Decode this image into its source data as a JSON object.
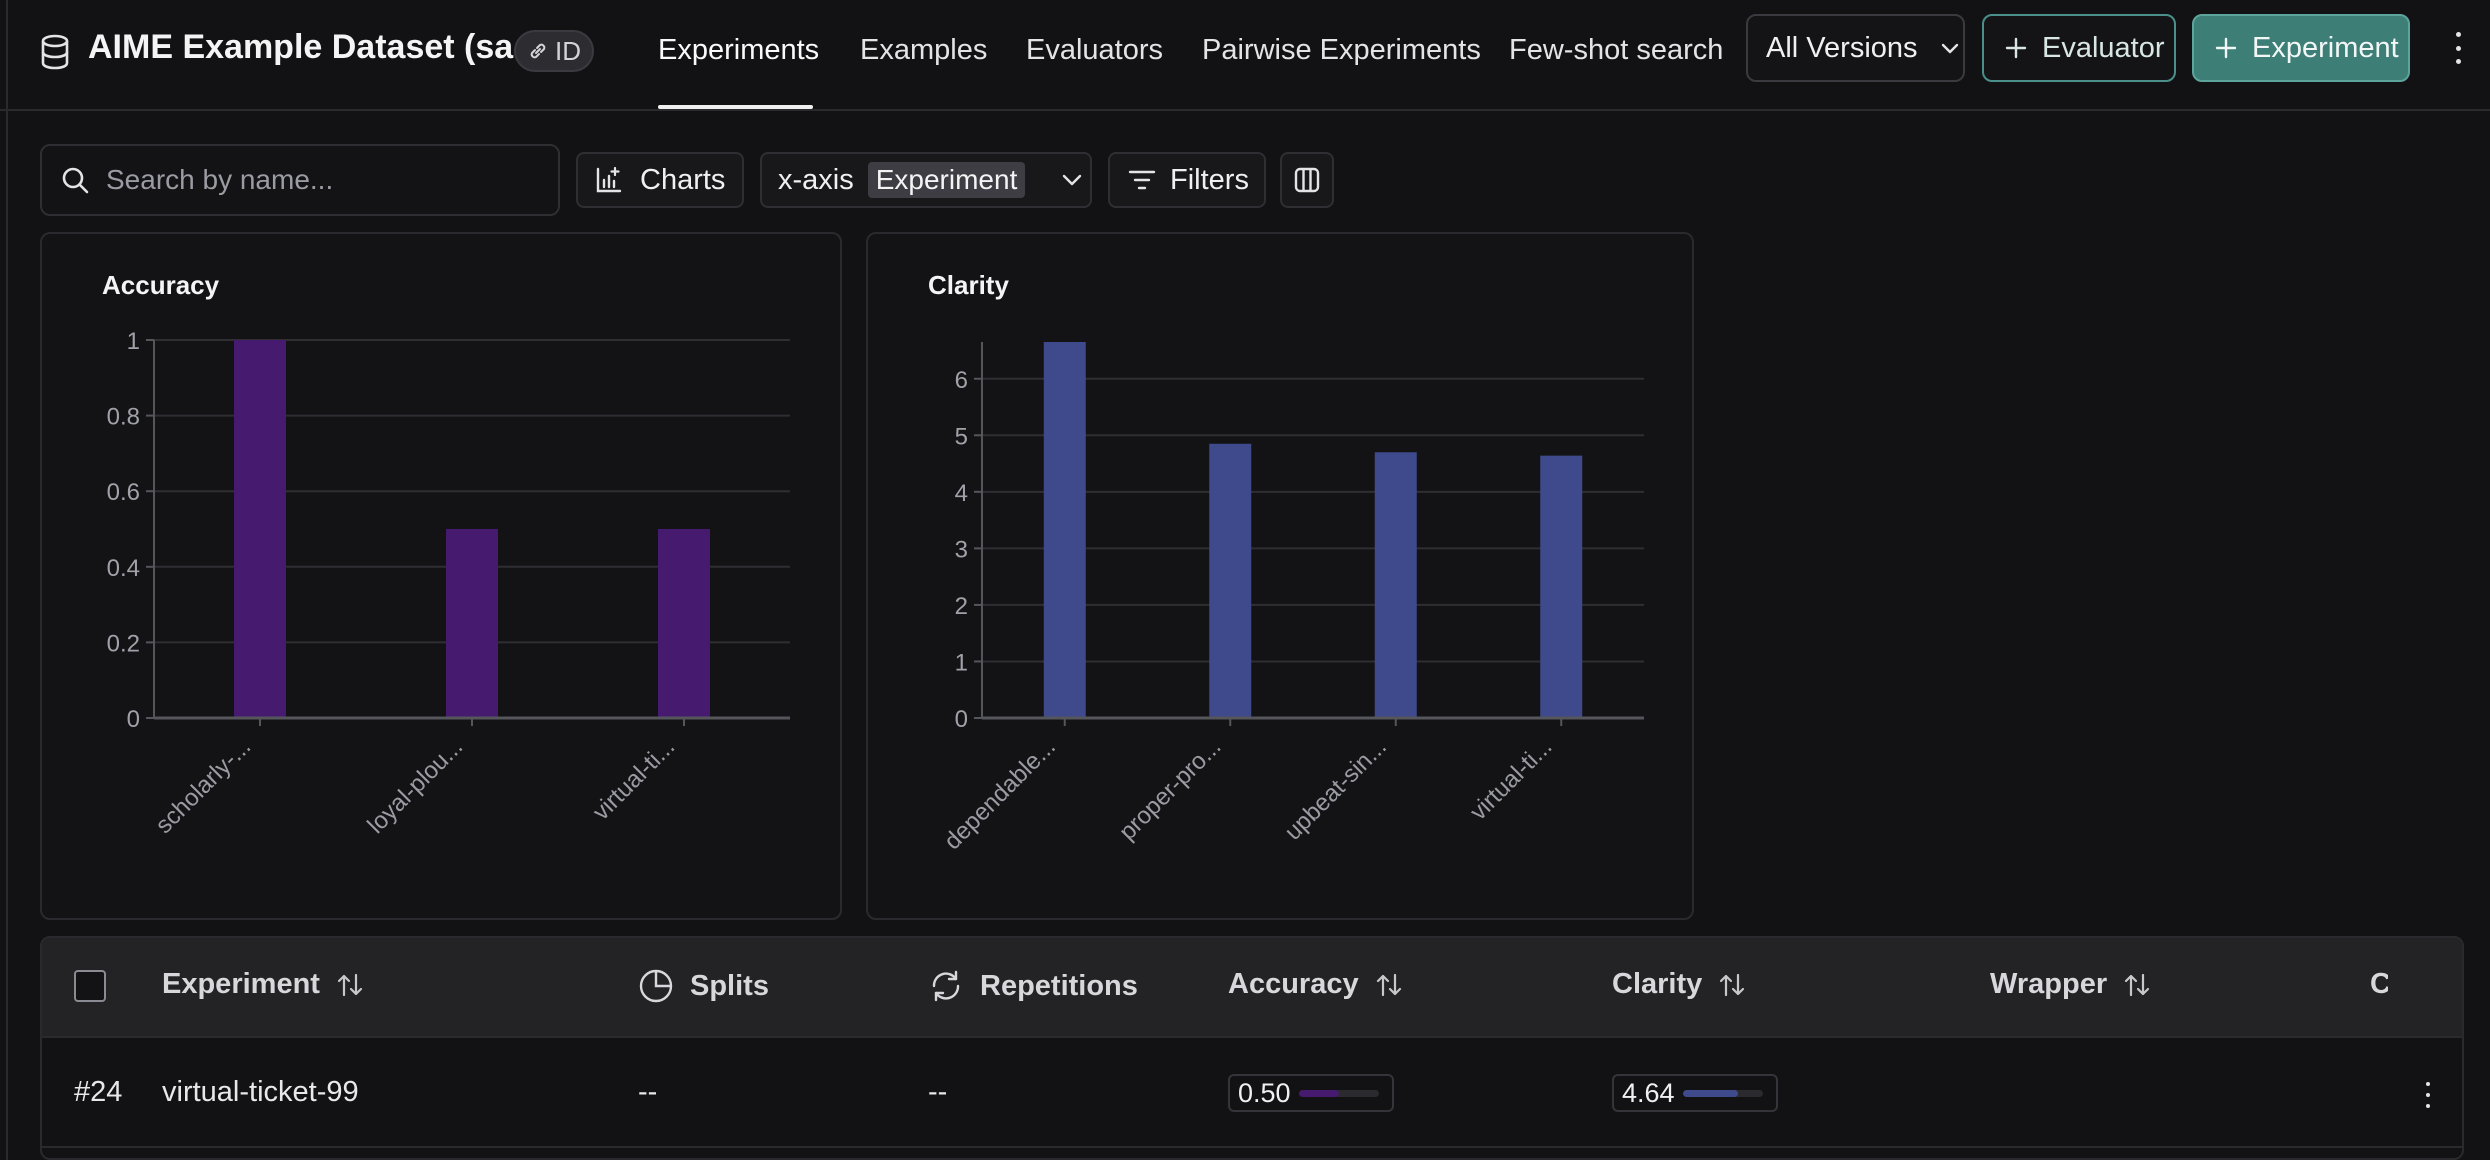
{
  "header": {
    "dataset_title": "AIME Example Dataset (sa...",
    "id_badge": "ID",
    "tabs": [
      {
        "label": "Experiments",
        "active": true
      },
      {
        "label": "Examples"
      },
      {
        "label": "Evaluators"
      },
      {
        "label": "Pairwise Experiments"
      },
      {
        "label": "Few-shot search"
      }
    ],
    "versions_label": "All Versions",
    "evaluator_label": "Evaluator",
    "experiment_label": "Experiment"
  },
  "toolbar": {
    "search_placeholder": "Search by name...",
    "charts_label": "Charts",
    "xaxis_label": "x-axis",
    "xaxis_value": "Experiment",
    "filters_label": "Filters"
  },
  "colors": {
    "accuracy_bar": "#461a6e",
    "clarity_bar": "#3f4a8c",
    "accent_teal": "#3d7e77"
  },
  "chart_data": [
    {
      "type": "bar",
      "title": "Accuracy",
      "categories": [
        "scholarly-...",
        "loyal-plou...",
        "virtual-ti..."
      ],
      "values": [
        1,
        0.5,
        0.5
      ],
      "ylim": [
        0,
        1
      ],
      "yticks": [
        "0",
        "0.2",
        "0.4",
        "0.6",
        "0.8",
        "1"
      ],
      "grid": true
    },
    {
      "type": "bar",
      "title": "Clarity",
      "categories": [
        "dependable...",
        "proper-pro...",
        "upbeat-sin...",
        "virtual-ti..."
      ],
      "values": [
        6.65,
        4.85,
        4.7,
        4.64
      ],
      "ylim": [
        0,
        6.65
      ],
      "yticks": [
        "0",
        "1",
        "2",
        "3",
        "4",
        "5",
        "6"
      ],
      "grid": true
    }
  ],
  "table": {
    "columns": {
      "experiment": "Experiment",
      "splits": "Splits",
      "repetitions": "Repetitions",
      "accuracy": "Accuracy",
      "clarity": "Clarity",
      "wrapper": "Wrapper",
      "cut": "C"
    },
    "rows": [
      {
        "index": "#24",
        "experiment": "virtual-ticket-99",
        "splits": "--",
        "repetitions": "--",
        "accuracy": "0.50",
        "accuracy_fraction": 0.5,
        "clarity": "4.64",
        "clarity_fraction": 0.69
      }
    ]
  }
}
